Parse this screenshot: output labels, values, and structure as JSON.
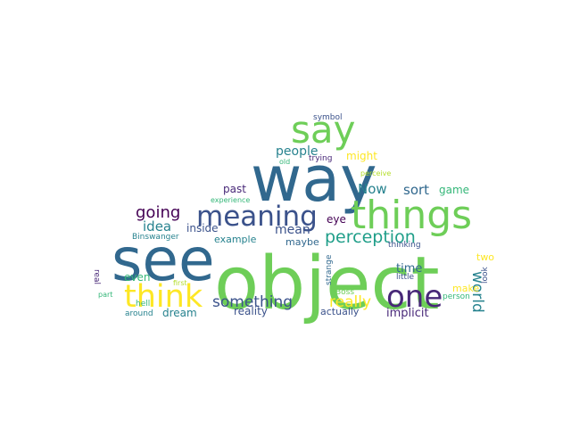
{
  "words": [
    {
      "text": "way",
      "color": "#31688e"
    },
    {
      "text": "object",
      "color": "#6ece58"
    },
    {
      "text": "see",
      "color": "#31688e"
    },
    {
      "text": "things",
      "color": "#6ece58"
    },
    {
      "text": "meaning",
      "color": "#3b528b"
    },
    {
      "text": "say",
      "color": "#6ece58"
    },
    {
      "text": "think",
      "color": "#fde725"
    },
    {
      "text": "one",
      "color": "#482878"
    },
    {
      "text": "perception",
      "color": "#1f9e89"
    },
    {
      "text": "something",
      "color": "#3b528b"
    },
    {
      "text": "going",
      "color": "#440154"
    },
    {
      "text": "really",
      "color": "#fde725"
    },
    {
      "text": "world",
      "color": "#26828e"
    },
    {
      "text": "idea",
      "color": "#26828e"
    },
    {
      "text": "people",
      "color": "#26828e"
    },
    {
      "text": "Now",
      "color": "#26828e"
    },
    {
      "text": "sort",
      "color": "#31688e"
    },
    {
      "text": "mean",
      "color": "#3b528b"
    },
    {
      "text": "might",
      "color": "#fde725"
    },
    {
      "text": "implicit",
      "color": "#482878"
    },
    {
      "text": "time",
      "color": "#31688e"
    },
    {
      "text": "inside",
      "color": "#3b528b"
    },
    {
      "text": "past",
      "color": "#482878"
    },
    {
      "text": "game",
      "color": "#35b779"
    },
    {
      "text": "eye",
      "color": "#440154"
    },
    {
      "text": "even",
      "color": "#35b779"
    },
    {
      "text": "dream",
      "color": "#26828e"
    },
    {
      "text": "reality",
      "color": "#3b528b"
    },
    {
      "text": "actually",
      "color": "#3b528b"
    },
    {
      "text": "make",
      "color": "#fde725"
    },
    {
      "text": "example",
      "color": "#26828e"
    },
    {
      "text": "maybe",
      "color": "#31688e"
    },
    {
      "text": "two",
      "color": "#fde725"
    },
    {
      "text": "Binswanger",
      "color": "#26828e"
    },
    {
      "text": "symbol",
      "color": "#3b528b"
    },
    {
      "text": "trying",
      "color": "#482878"
    },
    {
      "text": "old",
      "color": "#35b779"
    },
    {
      "text": "perceive",
      "color": "#b5de2b"
    },
    {
      "text": "experience",
      "color": "#35b779"
    },
    {
      "text": "thinking",
      "color": "#3b528b"
    },
    {
      "text": "little",
      "color": "#3b528b"
    },
    {
      "text": "Boss",
      "color": "#6ece58"
    },
    {
      "text": "person",
      "color": "#35b779"
    },
    {
      "text": "real",
      "color": "#482878"
    },
    {
      "text": "hell",
      "color": "#35b779"
    },
    {
      "text": "first",
      "color": "#b5de2b"
    },
    {
      "text": "part",
      "color": "#35b779"
    },
    {
      "text": "around",
      "color": "#26828e"
    },
    {
      "text": "strange",
      "color": "#31688e"
    },
    {
      "text": "look",
      "color": "#3b528b"
    }
  ]
}
